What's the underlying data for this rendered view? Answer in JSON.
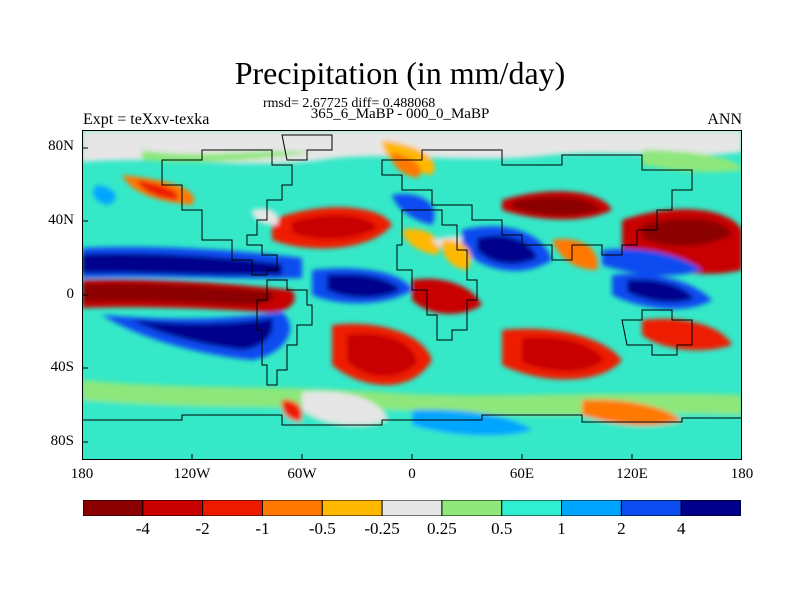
{
  "title": "Precipitation (in mm/day)",
  "subtitle_stats": "rmsd= 2.67725 diff= 0.488068",
  "subtitle_cases": "365_6_MaBP - 000_0_MaBP",
  "left_label": "Expt = teXxv-texka",
  "right_label": "ANN",
  "lat_ticks": [
    "80N",
    "40N",
    "0",
    "40S",
    "80S"
  ],
  "lon_ticks": [
    "180",
    "120W",
    "60W",
    "0",
    "60E",
    "120E",
    "180"
  ],
  "colorbar": {
    "colors": [
      "#8B0000",
      "#C80000",
      "#EE1A00",
      "#FF7800",
      "#FFB800",
      "#E6E6E6",
      "#8EE77A",
      "#2FEFD0",
      "#00A5FF",
      "#0A4CF0",
      "#00008C"
    ],
    "labels": [
      "-4",
      "-2",
      "-1",
      "-0.5",
      "-0.25",
      "0.25",
      "0.5",
      "1",
      "2",
      "4"
    ]
  }
}
